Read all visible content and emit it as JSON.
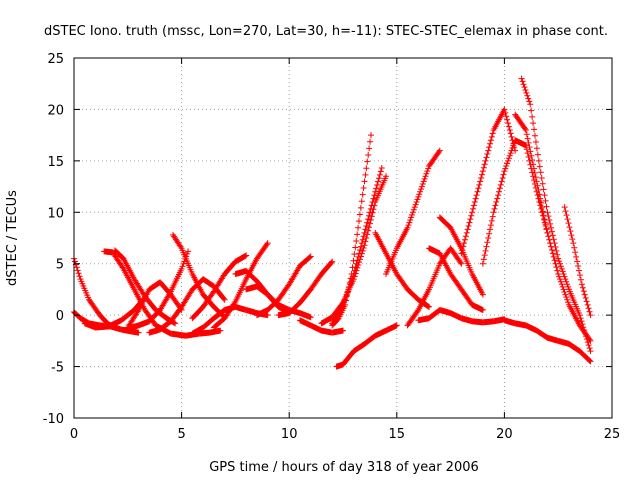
{
  "chart_data": {
    "type": "scatter",
    "title": "dSTEC Iono. truth (mssc, Lon=270, Lat=30, h=-11): STEC-STEC_elemax in phase cont.",
    "xlabel": "GPS time / hours of day 318 of year 2006",
    "ylabel": "dSTEC  / TECUs",
    "xlim": [
      0,
      25
    ],
    "ylim": [
      -10,
      25
    ],
    "xticks": [
      0,
      5,
      10,
      15,
      20,
      25
    ],
    "yticks": [
      -10,
      -5,
      0,
      5,
      10,
      15,
      20,
      25
    ],
    "xtick_labels": [
      "0",
      "5",
      "10",
      "15",
      "20",
      "25"
    ],
    "ytick_labels": [
      "-10",
      "-5",
      "0",
      "5",
      "10",
      "15",
      "20",
      "25"
    ],
    "grid": true,
    "marker": "plus",
    "color": "#ff0000",
    "series": [
      {
        "x": [
          0.0,
          0.3,
          0.7,
          1.2,
          1.6,
          2.0
        ],
        "y": [
          5.5,
          3.5,
          1.5,
          0.0,
          -0.9,
          -1.2
        ]
      },
      {
        "x": [
          0.0,
          0.3,
          0.7,
          1.2,
          1.7,
          2.2,
          2.7,
          3.0
        ],
        "y": [
          0.3,
          -0.3,
          -0.8,
          -1.0,
          -1.1,
          -1.4,
          -1.6,
          -1.7
        ]
      },
      {
        "x": [
          0.5,
          1.0,
          1.6,
          2.2,
          2.8,
          3.2
        ],
        "y": [
          -0.8,
          -1.2,
          -1.1,
          -0.5,
          0.5,
          1.5
        ]
      },
      {
        "x": [
          1.4,
          1.8,
          2.3,
          2.8,
          3.3,
          3.8
        ],
        "y": [
          6.2,
          6.1,
          4.5,
          2.5,
          0.5,
          -1.0
        ]
      },
      {
        "x": [
          1.9,
          2.3,
          2.8,
          3.3,
          3.8,
          4.3,
          4.7
        ],
        "y": [
          6.3,
          5.5,
          3.5,
          1.8,
          0.5,
          -0.3,
          -0.8
        ]
      },
      {
        "x": [
          2.5,
          3.0,
          3.5,
          4.0,
          4.5,
          5.0
        ],
        "y": [
          -1.2,
          0.5,
          2.5,
          3.2,
          2.0,
          0.5
        ]
      },
      {
        "x": [
          4.6,
          5.0,
          5.5,
          6.0,
          6.5,
          7.0
        ],
        "y": [
          7.8,
          6.5,
          4.0,
          2.0,
          0.8,
          -0.2
        ]
      },
      {
        "x": [
          3.5,
          4.0,
          4.5,
          5.0,
          5.5,
          6.0,
          6.5,
          7.0
        ],
        "y": [
          -1.7,
          -1.4,
          -0.6,
          0.8,
          2.5,
          3.5,
          2.8,
          1.5
        ]
      },
      {
        "x": [
          2.5,
          3.0,
          3.5,
          4.0,
          4.5,
          5.0,
          5.3
        ],
        "y": [
          -1.3,
          -1.0,
          -0.6,
          0.5,
          2.3,
          4.5,
          6.2
        ]
      },
      {
        "x": [
          3.8,
          4.5,
          5.2,
          5.8,
          6.3,
          6.8
        ],
        "y": [
          -1.0,
          -1.8,
          -2.0,
          -1.8,
          -1.7,
          -1.5
        ]
      },
      {
        "x": [
          5.5,
          6.0,
          6.5,
          7.0,
          7.5,
          8.0
        ],
        "y": [
          -0.3,
          0.8,
          2.3,
          4.0,
          5.2,
          5.8
        ]
      },
      {
        "x": [
          6.5,
          7.0,
          7.5,
          8.0,
          8.5,
          9.0
        ],
        "y": [
          -1.2,
          -0.3,
          1.3,
          3.5,
          5.5,
          7.0
        ]
      },
      {
        "x": [
          5.5,
          6.0,
          6.5,
          7.0,
          7.5,
          8.0,
          8.5,
          9.0
        ],
        "y": [
          -1.8,
          -1.2,
          -0.3,
          0.5,
          0.8,
          0.5,
          0.2,
          0.0
        ]
      },
      {
        "x": [
          7.5,
          8.0,
          8.5,
          9.0,
          9.5,
          10.0
        ],
        "y": [
          4.0,
          4.3,
          3.3,
          2.0,
          0.8,
          0.3
        ]
      },
      {
        "x": [
          8.0,
          8.5,
          9.0,
          9.5,
          10.0,
          10.5,
          11.0
        ],
        "y": [
          2.5,
          2.8,
          2.0,
          1.0,
          0.5,
          0.2,
          -0.2
        ]
      },
      {
        "x": [
          8.5,
          9.0,
          9.5,
          10.0,
          10.5,
          11.0
        ],
        "y": [
          0.0,
          0.5,
          1.5,
          3.0,
          4.8,
          5.7
        ]
      },
      {
        "x": [
          9.5,
          10.0,
          10.5,
          11.0,
          11.5,
          12.0
        ],
        "y": [
          0.0,
          0.2,
          1.2,
          2.5,
          4.0,
          5.2
        ]
      },
      {
        "x": [
          10.5,
          11.0,
          11.5,
          12.0,
          12.5
        ],
        "y": [
          -0.5,
          -1.0,
          -1.5,
          -1.7,
          -1.5
        ]
      },
      {
        "x": [
          12.0,
          12.3,
          12.6,
          12.9,
          13.2,
          13.5,
          13.8
        ],
        "y": [
          -1.0,
          -0.3,
          1.0,
          4.0,
          8.5,
          13.0,
          17.5
        ]
      },
      {
        "x": [
          12.2,
          12.5,
          13.0,
          13.5,
          14.0,
          14.5,
          15.0
        ],
        "y": [
          -5.0,
          -4.8,
          -3.5,
          -2.8,
          -2.0,
          -1.5,
          -1.0
        ]
      },
      {
        "x": [
          12.0,
          12.5,
          13.0,
          13.5,
          14.0,
          14.3
        ],
        "y": [
          -0.8,
          1.0,
          4.0,
          8.0,
          12.0,
          14.3
        ]
      },
      {
        "x": [
          11.5,
          12.0,
          12.5,
          13.0,
          13.5,
          14.0,
          14.5
        ],
        "y": [
          -0.8,
          -0.2,
          1.2,
          3.5,
          6.8,
          11.0,
          13.5
        ]
      },
      {
        "x": [
          14.0,
          14.5,
          15.0,
          15.5,
          16.0,
          16.5
        ],
        "y": [
          8.0,
          6.0,
          4.0,
          2.5,
          1.5,
          0.8
        ]
      },
      {
        "x": [
          14.5,
          15.0,
          15.5,
          16.0,
          16.5,
          17.0
        ],
        "y": [
          4.0,
          6.5,
          8.5,
          11.5,
          14.5,
          16.0
        ]
      },
      {
        "x": [
          15.5,
          16.0,
          16.5,
          17.0,
          17.5,
          18.0
        ],
        "y": [
          -1.0,
          0.5,
          2.5,
          5.0,
          6.5,
          5.0
        ]
      },
      {
        "x": [
          16.5,
          17.0,
          17.5,
          18.0,
          18.5,
          19.0
        ],
        "y": [
          6.5,
          6.0,
          4.0,
          2.5,
          1.0,
          0.5
        ]
      },
      {
        "x": [
          17.0,
          17.5,
          18.0,
          18.5,
          19.0
        ],
        "y": [
          9.5,
          8.5,
          6.5,
          4.0,
          2.0
        ]
      },
      {
        "x": [
          18.0,
          18.5,
          19.0,
          19.5,
          20.0,
          20.5
        ],
        "y": [
          6.0,
          10.0,
          14.0,
          18.0,
          20.0,
          16.0
        ]
      },
      {
        "x": [
          19.0,
          19.5,
          20.0,
          20.5,
          21.0,
          21.5,
          22.0
        ],
        "y": [
          5.0,
          10.0,
          14.0,
          17.0,
          16.5,
          12.0,
          8.0
        ]
      },
      {
        "x": [
          20.5,
          21.0,
          21.5,
          22.0,
          22.5,
          23.0,
          23.5,
          24.0
        ],
        "y": [
          19.5,
          18.0,
          13.0,
          8.0,
          4.0,
          1.0,
          -1.0,
          -2.5
        ]
      },
      {
        "x": [
          20.8,
          21.2,
          21.6,
          22.0,
          22.5,
          23.0,
          23.5,
          24.0
        ],
        "y": [
          23.0,
          20.5,
          15.0,
          10.0,
          5.5,
          2.5,
          0.0,
          -3.5
        ]
      },
      {
        "x": [
          22.8,
          23.2,
          23.6,
          24.0
        ],
        "y": [
          10.5,
          7.0,
          3.0,
          0.0
        ]
      },
      {
        "x": [
          20.0,
          20.5,
          21.0,
          21.5,
          22.0,
          22.5,
          23.0,
          23.5,
          24.0
        ],
        "y": [
          -0.5,
          -0.8,
          -1.0,
          -1.5,
          -2.2,
          -2.5,
          -2.8,
          -3.5,
          -4.5
        ]
      },
      {
        "x": [
          16.0,
          16.5,
          17.0,
          17.5,
          18.0,
          18.5,
          19.0,
          19.5,
          20.0
        ],
        "y": [
          -0.5,
          -0.3,
          0.5,
          0.2,
          -0.3,
          -0.6,
          -0.7,
          -0.6,
          -0.4
        ]
      }
    ]
  }
}
